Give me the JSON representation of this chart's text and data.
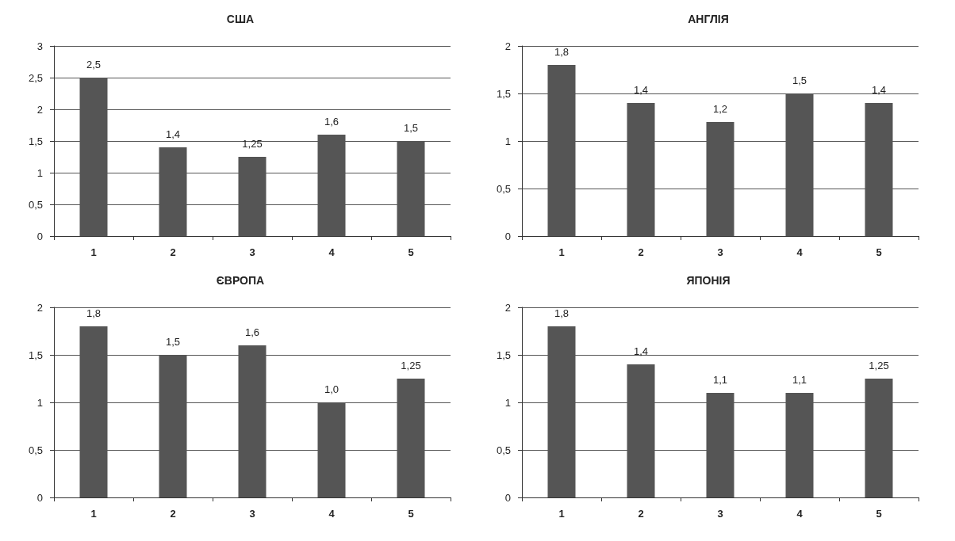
{
  "chart_data": [
    {
      "type": "bar",
      "title": "США",
      "categories": [
        "1",
        "2",
        "3",
        "4",
        "5"
      ],
      "values": [
        2.5,
        1.4,
        1.25,
        1.6,
        1.5
      ],
      "value_labels": [
        "2,5",
        "1,4",
        "1,25",
        "1,6",
        "1,5"
      ],
      "color": "#555555",
      "ylim": [
        0,
        3
      ],
      "yticks": [
        0,
        {
          "value": 0.5,
          "label": "0,5"
        },
        1,
        {
          "value": 1.5,
          "label": "1,5"
        },
        2,
        {
          "value": 2.5,
          "label": "2,5"
        },
        3
      ],
      "grid": "y"
    },
    {
      "type": "bar",
      "title": "АНГЛІЯ",
      "categories": [
        "1",
        "2",
        "3",
        "4",
        "5"
      ],
      "values": [
        1.8,
        1.4,
        1.2,
        1.5,
        1.4
      ],
      "value_labels": [
        "1,8",
        "1,4",
        "1,2",
        "1,5",
        "1,4"
      ],
      "color": "#555555",
      "ylim": [
        0,
        2
      ],
      "yticks": [
        0,
        {
          "value": 0.5,
          "label": "0,5"
        },
        1,
        {
          "value": 1.5,
          "label": "1,5"
        },
        2
      ],
      "grid": "y"
    },
    {
      "type": "bar",
      "title": "ЄВРОПА",
      "categories": [
        "1",
        "2",
        "3",
        "4",
        "5"
      ],
      "values": [
        1.8,
        1.5,
        1.6,
        1.0,
        1.25
      ],
      "value_labels": [
        "1,8",
        "1,5",
        "1,6",
        "1,0",
        "1,25"
      ],
      "color": "#555555",
      "ylim": [
        0,
        2
      ],
      "yticks": [
        0,
        {
          "value": 0.5,
          "label": "0,5"
        },
        1,
        {
          "value": 1.5,
          "label": "1,5"
        },
        2
      ],
      "grid": "y"
    },
    {
      "type": "bar",
      "title": "ЯПОНІЯ",
      "categories": [
        "1",
        "2",
        "3",
        "4",
        "5"
      ],
      "values": [
        1.8,
        1.4,
        1.1,
        1.1,
        1.25
      ],
      "value_labels": [
        "1,8",
        "1,4",
        "1,1",
        "1,1",
        "1,25"
      ],
      "color": "#555555",
      "ylim": [
        0,
        2
      ],
      "yticks": [
        0,
        {
          "value": 0.5,
          "label": "0,5"
        },
        1,
        {
          "value": 1.5,
          "label": "1,5"
        },
        2
      ],
      "grid": "y"
    }
  ]
}
